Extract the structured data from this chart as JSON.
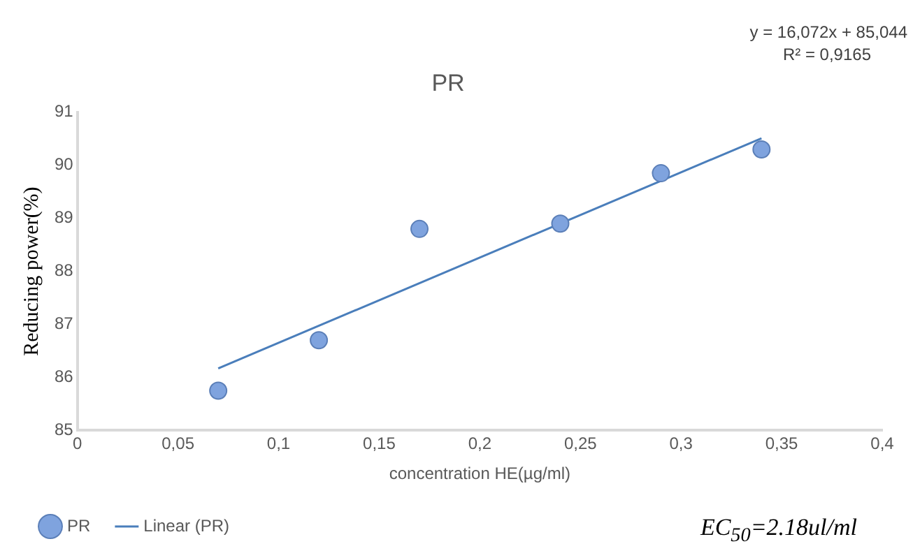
{
  "chart_data": {
    "type": "scatter",
    "title": "PR",
    "xlabel": "concentration HE(µg/ml)",
    "ylabel": "Reducing power(%)",
    "xlim": [
      0,
      0.4
    ],
    "xticks": [
      0,
      {
        "value": 0.05,
        "label": "0,05"
      },
      {
        "value": 0.1,
        "label": "0,1"
      },
      {
        "value": 0.15,
        "label": "0,15"
      },
      {
        "value": 0.2,
        "label": "0,2"
      },
      {
        "value": 0.25,
        "label": "0,25"
      },
      {
        "value": 0.3,
        "label": "0,3"
      },
      {
        "value": 0.35,
        "label": "0,35"
      },
      {
        "value": 0.4,
        "label": "0,4"
      }
    ],
    "ylim": [
      85,
      91
    ],
    "yticks": [
      85,
      86,
      87,
      88,
      89,
      90,
      91
    ],
    "series": [
      {
        "name": "PR",
        "type": "scatter",
        "marker": "circle",
        "color": "#7fa3de",
        "x": [
          0.07,
          0.12,
          0.17,
          0.24,
          0.29,
          0.34
        ],
        "values": [
          85.75,
          86.7,
          88.8,
          88.9,
          89.85,
          90.3
        ]
      },
      {
        "name": "Linear (PR)",
        "type": "line",
        "marker": "none",
        "color": "#4a7ebb",
        "x": [
          0.07,
          0.34
        ],
        "values": [
          86.17,
          90.51
        ]
      }
    ],
    "grid": false,
    "legend": "bottom",
    "annotations": [
      "y = 16,072x + 85,044",
      "R² = 0,9165",
      "EC$_{50}$=2.18ul/ml"
    ]
  }
}
